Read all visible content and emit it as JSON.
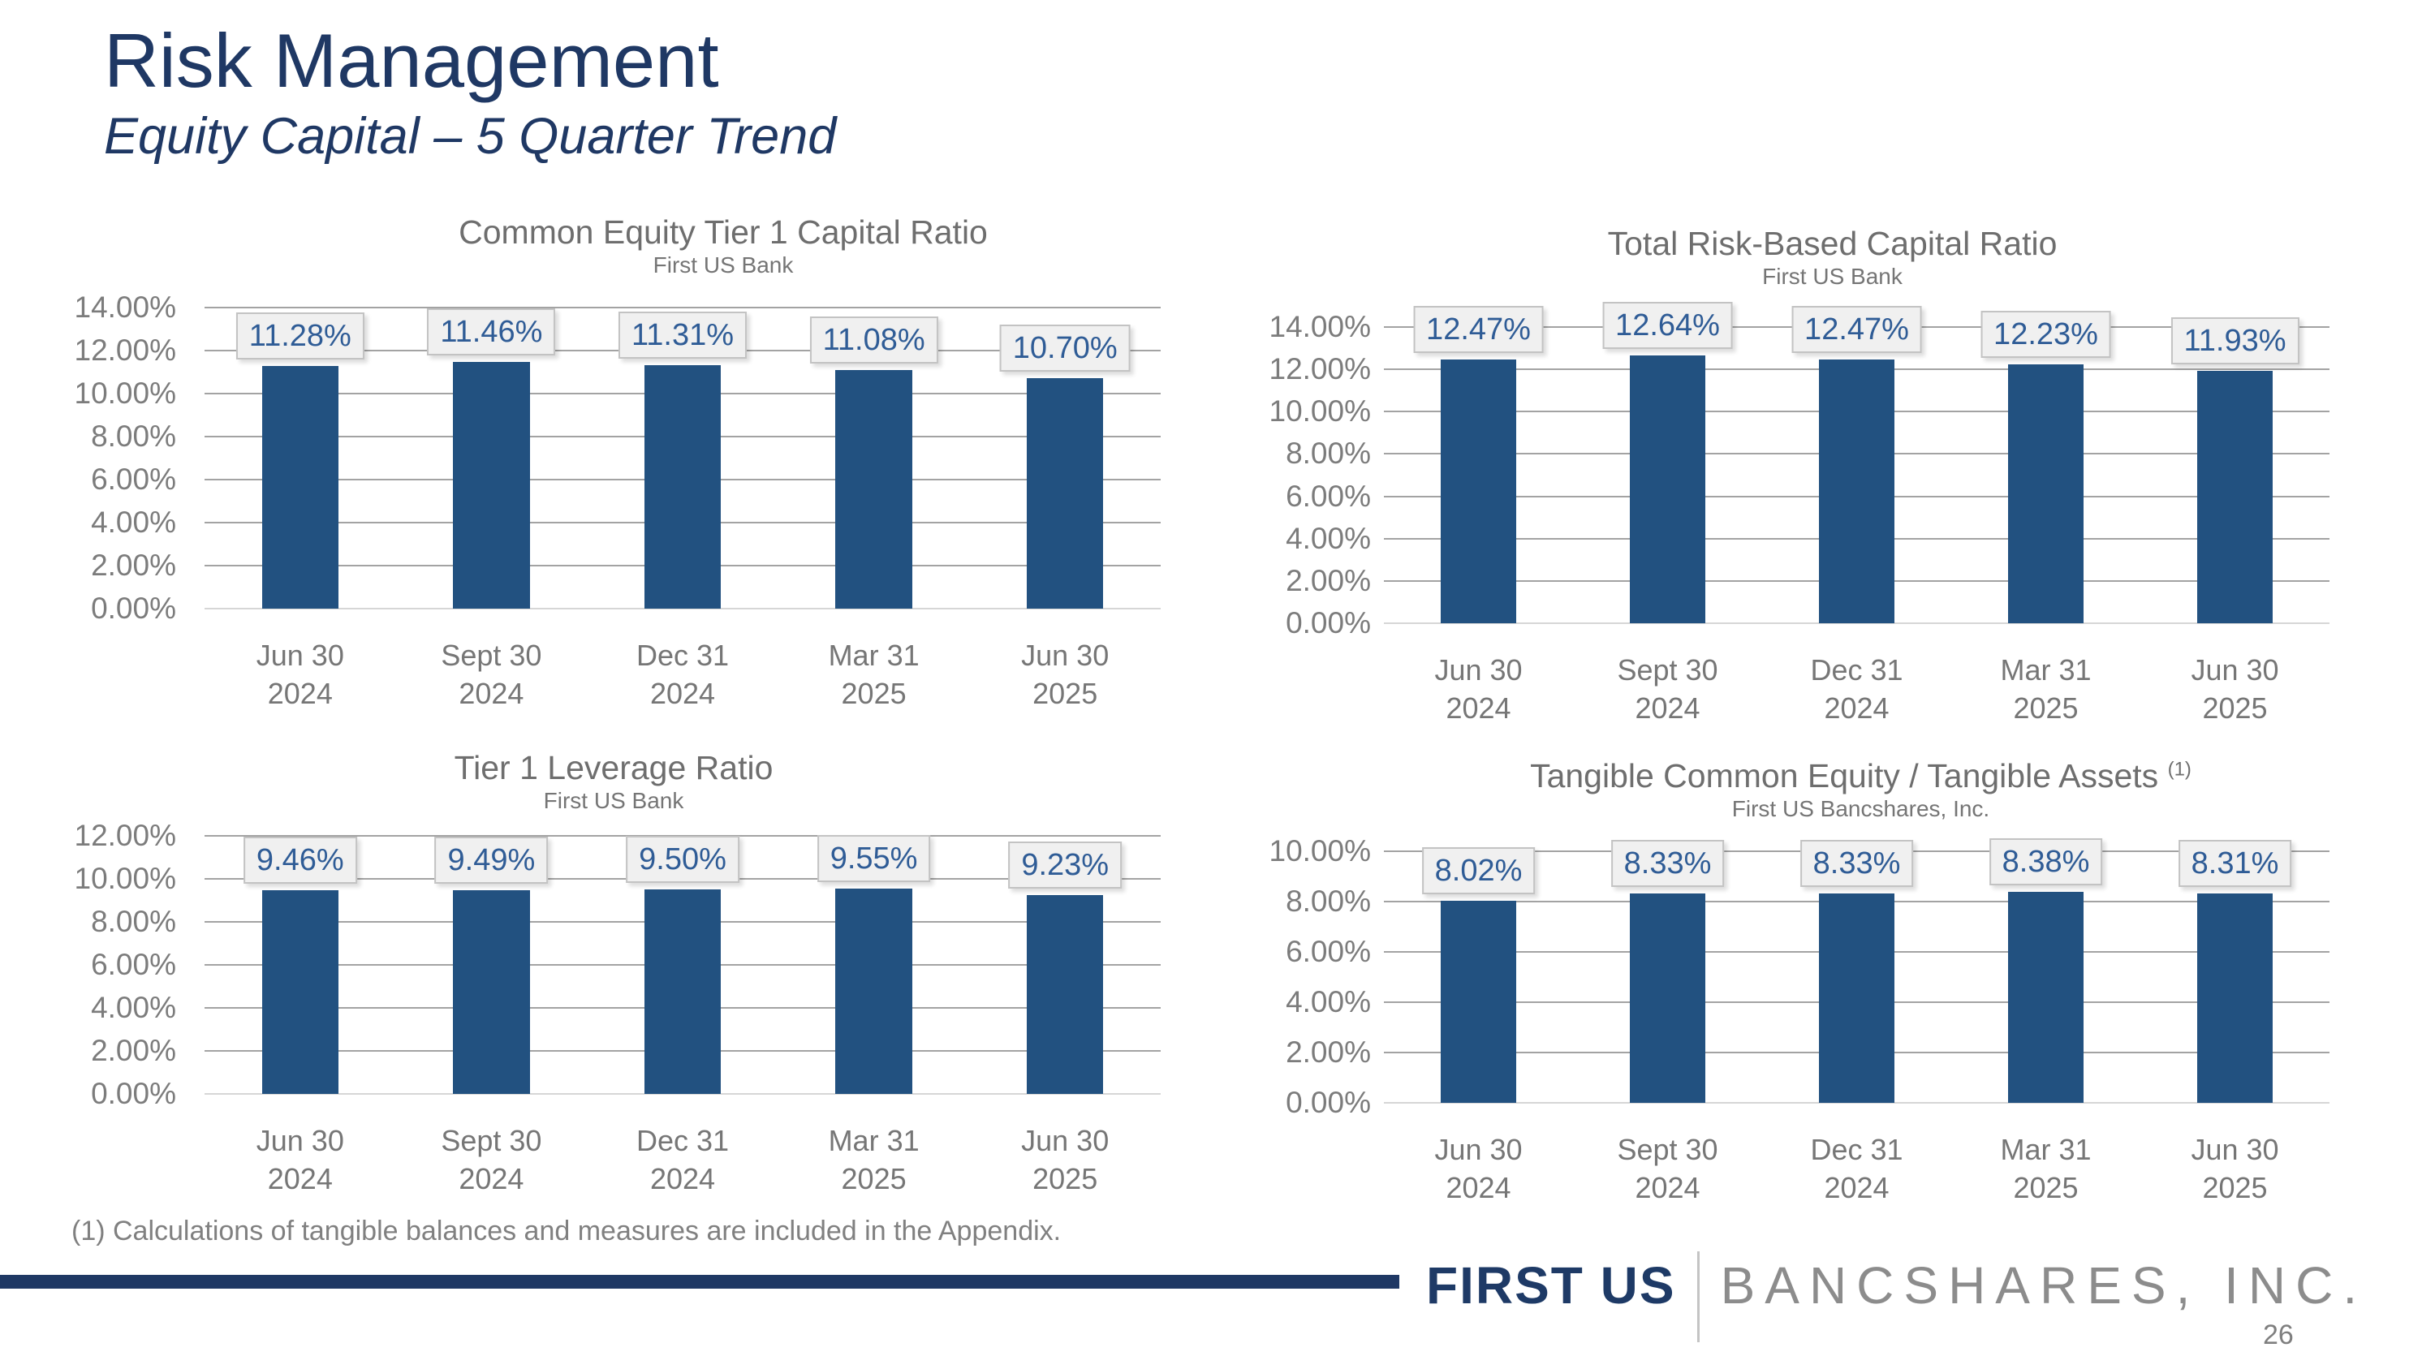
{
  "header": {
    "title": "Risk Management",
    "subtitle": "Equity Capital – 5 Quarter Trend"
  },
  "chart_data": [
    {
      "type": "bar",
      "title": "Common Equity Tier 1 Capital Ratio",
      "subtitle": "First US Bank",
      "categories": [
        "Jun 30\n2024",
        "Sept 30\n2024",
        "Dec 31\n2024",
        "Mar 31\n2025",
        "Jun 30\n2025"
      ],
      "values": [
        11.28,
        11.46,
        11.31,
        11.08,
        10.7
      ],
      "value_labels": [
        "11.28%",
        "11.46%",
        "11.31%",
        "11.08%",
        "10.70%"
      ],
      "ylabel_format": "percent",
      "ylim": [
        0,
        14
      ],
      "ytick": 2,
      "grid": true,
      "legend": "none"
    },
    {
      "type": "bar",
      "title": "Total Risk-Based Capital Ratio",
      "subtitle": "First US Bank",
      "categories": [
        "Jun 30\n2024",
        "Sept 30\n2024",
        "Dec 31\n2024",
        "Mar 31\n2025",
        "Jun 30\n2025"
      ],
      "values": [
        12.47,
        12.64,
        12.47,
        12.23,
        11.93
      ],
      "value_labels": [
        "12.47%",
        "12.64%",
        "12.47%",
        "12.23%",
        "11.93%"
      ],
      "ylabel_format": "percent",
      "ylim": [
        0,
        14
      ],
      "ytick": 2,
      "grid": true,
      "legend": "none"
    },
    {
      "type": "bar",
      "title": "Tier 1 Leverage Ratio",
      "subtitle": "First US Bank",
      "categories": [
        "Jun 30\n2024",
        "Sept 30\n2024",
        "Dec 31\n2024",
        "Mar 31\n2025",
        "Jun 30\n2025"
      ],
      "values": [
        9.46,
        9.49,
        9.5,
        9.55,
        9.23
      ],
      "value_labels": [
        "9.46%",
        "9.49%",
        "9.50%",
        "9.55%",
        "9.23%"
      ],
      "ylabel_format": "percent",
      "ylim": [
        0,
        12
      ],
      "ytick": 2,
      "grid": true,
      "legend": "none"
    },
    {
      "type": "bar",
      "title": "Tangible Common Equity / Tangible Assets",
      "title_superscript": "(1)",
      "subtitle": "First US Bancshares, Inc.",
      "categories": [
        "Jun 30\n2024",
        "Sept 30\n2024",
        "Dec 31\n2024",
        "Mar 31\n2025",
        "Jun 30\n2025"
      ],
      "values": [
        8.02,
        8.33,
        8.33,
        8.38,
        8.31
      ],
      "value_labels": [
        "8.02%",
        "8.33%",
        "8.33%",
        "8.38%",
        "8.31%"
      ],
      "ylabel_format": "percent",
      "ylim": [
        0,
        10
      ],
      "ytick": 2,
      "grid": true,
      "legend": "none"
    }
  ],
  "footnote": "(1) Calculations of tangible balances and measures are included in the Appendix.",
  "footer": {
    "brand_primary": "FIRST US",
    "brand_secondary": "BANCSHARES, INC.",
    "page_number": "26"
  },
  "colors": {
    "heading_navy": "#1f3864",
    "bar_fill": "#225180",
    "value_label_text": "#2f5c96",
    "value_label_bg": "#f0f0f0",
    "gridline": "#a3a3a3",
    "axis_text": "#7c7c7c",
    "title_text": "#6e6e6e",
    "brand_gray": "#8c8c8c"
  }
}
